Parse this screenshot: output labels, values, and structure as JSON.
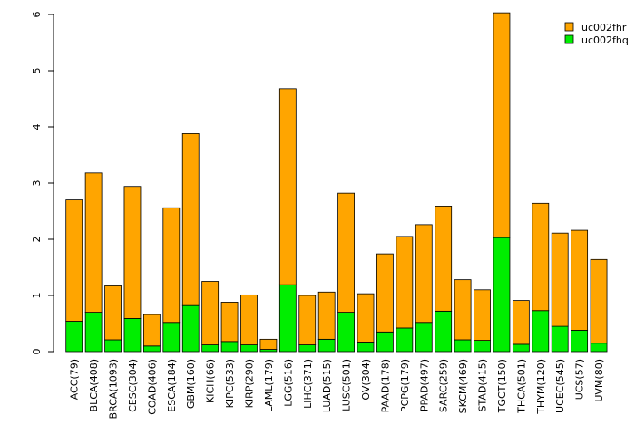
{
  "chart_data": {
    "type": "bar",
    "stacked": true,
    "title": "",
    "xlabel": "",
    "ylabel": "",
    "ylim": [
      0,
      6
    ],
    "yticks": [
      0,
      1,
      2,
      3,
      4,
      5,
      6
    ],
    "legend_position": "top-right",
    "categories": [
      "ACC(79)",
      "BLCA(408)",
      "BRCA(1093)",
      "CESC(304)",
      "COAD(406)",
      "ESCA(184)",
      "GBM(160)",
      "KICH(66)",
      "KIPC(533)",
      "KIRP(290)",
      "LAML(179)",
      "LGG(516)",
      "LIHC(371)",
      "LUAD(515)",
      "LUSC(501)",
      "OV(304)",
      "PAAD(178)",
      "PCPG(179)",
      "PPAD(497)",
      "SARC(259)",
      "SKCM(469)",
      "STAD(415)",
      "TGCT(150)",
      "THCA(501)",
      "THYM(120)",
      "UCEC(545)",
      "UCS(57)",
      "UVM(80)"
    ],
    "series": [
      {
        "name": "uc002fhq",
        "color": "#00ee00",
        "values": [
          0.54,
          0.7,
          0.21,
          0.59,
          0.1,
          0.52,
          0.82,
          0.12,
          0.18,
          0.12,
          0.04,
          1.19,
          0.12,
          0.22,
          0.7,
          0.17,
          0.35,
          0.42,
          0.52,
          0.72,
          0.21,
          0.2,
          2.03,
          0.13,
          0.73,
          0.45,
          0.38,
          0.15
        ]
      },
      {
        "name": "uc002fhr",
        "color": "#ffa500",
        "values": [
          2.16,
          2.48,
          0.96,
          2.35,
          0.56,
          2.04,
          3.06,
          1.13,
          0.7,
          0.89,
          0.18,
          3.49,
          0.88,
          0.84,
          2.12,
          0.86,
          1.39,
          1.63,
          1.74,
          1.87,
          1.07,
          0.9,
          4.0,
          0.78,
          1.91,
          1.66,
          1.78,
          1.49
        ]
      }
    ],
    "legend": [
      {
        "name": "uc002fhr",
        "color": "#ffa500"
      },
      {
        "name": "uc002fhq",
        "color": "#00ee00"
      }
    ]
  }
}
